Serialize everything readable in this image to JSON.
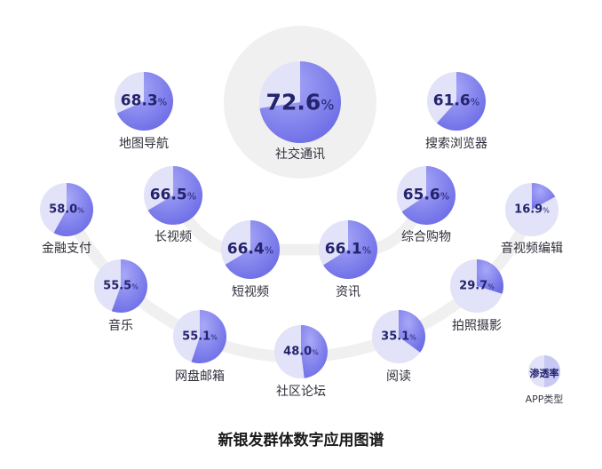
{
  "chart_data": {
    "type": "pie",
    "title": "新银发群体数字应用图谱",
    "unit": "%",
    "legend": {
      "value_label": "渗透率",
      "category_label": "APP类型"
    },
    "categories": [
      "社交通讯",
      "地图导航",
      "搜索浏览器",
      "长视频",
      "综合购物",
      "金融支付",
      "短视频",
      "资讯",
      "音视频编辑",
      "音乐",
      "拍照摄影",
      "网盘邮箱",
      "社区论坛",
      "阅读"
    ],
    "values": [
      72.6,
      68.3,
      61.6,
      66.5,
      65.6,
      58.0,
      66.4,
      66.1,
      16.9,
      55.5,
      29.7,
      55.1,
      48.0,
      35.1
    ],
    "display": [
      "72.6",
      "68.3",
      "61.6",
      "66.5",
      "65.6",
      "58.0",
      "66.4",
      "66.1",
      "16.9",
      "55.5",
      "29.7",
      "55.1",
      "48.0",
      "35.1"
    ],
    "colors": {
      "fill": "#8484ef",
      "fill_dark": "#6a6ae6",
      "base": "#e2e2f8",
      "track": "#f0f0f0",
      "text": "#23236e"
    }
  }
}
